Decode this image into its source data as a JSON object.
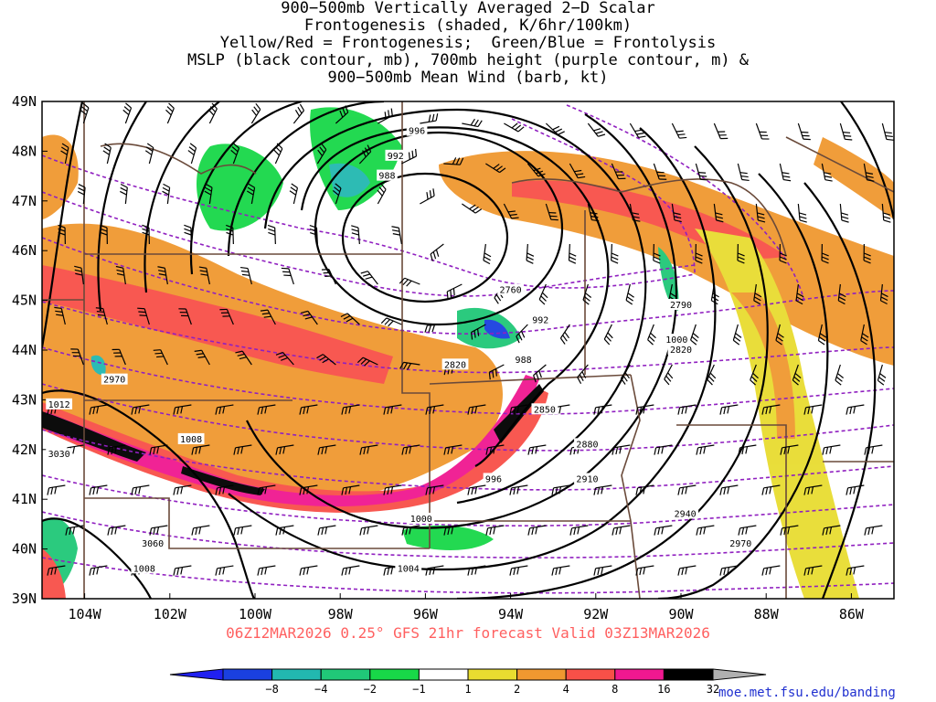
{
  "title_lines": [
    "900−500mb Vertically Averaged 2−D Scalar",
    "Frontogenesis (shaded, K/6hr/100km)",
    "Yellow/Red = Frontogenesis;  Green/Blue = Frontolysis",
    "MSLP (black contour, mb), 700mb height (purple contour, m) &",
    "900−500mb Mean Wind (barb, kt)"
  ],
  "valid_line": "06Z12MAR2026 0.25° GFS 21hr forecast Valid 03Z13MAR2026",
  "credit": "moe.met.fsu.edu/banding",
  "map": {
    "lat_labels": [
      "49N",
      "48N",
      "47N",
      "46N",
      "45N",
      "44N",
      "43N",
      "42N",
      "41N",
      "40N",
      "39N"
    ],
    "lon_labels": [
      "104W",
      "102W",
      "100W",
      "98W",
      "96W",
      "94W",
      "92W",
      "90W",
      "88W",
      "86W"
    ],
    "pressure_labels": [
      {
        "text": "996",
        "lon": -96.2,
        "lat": 48.4
      },
      {
        "text": "992",
        "lon": -96.7,
        "lat": 47.9
      },
      {
        "text": "988",
        "lon": -96.9,
        "lat": 47.5
      },
      {
        "text": "992",
        "lon": -93.3,
        "lat": 44.6
      },
      {
        "text": "988",
        "lon": -93.7,
        "lat": 43.8
      },
      {
        "text": "996",
        "lon": -94.4,
        "lat": 41.4
      },
      {
        "text": "1000",
        "lon": -96.1,
        "lat": 40.6
      },
      {
        "text": "1004",
        "lon": -96.4,
        "lat": 39.6
      },
      {
        "text": "1008",
        "lon": -101.5,
        "lat": 42.2
      },
      {
        "text": "1012",
        "lon": -104.6,
        "lat": 42.9
      },
      {
        "text": "1008",
        "lon": -102.6,
        "lat": 39.6
      },
      {
        "text": "1000",
        "lon": -90.1,
        "lat": 44.2
      }
    ],
    "height_labels": [
      {
        "text": "2760",
        "lon": -94.0,
        "lat": 45.2
      },
      {
        "text": "2790",
        "lon": -90.0,
        "lat": 44.9
      },
      {
        "text": "2820",
        "lon": -95.3,
        "lat": 43.7
      },
      {
        "text": "2820",
        "lon": -90.0,
        "lat": 44.0
      },
      {
        "text": "2850",
        "lon": -93.2,
        "lat": 42.8
      },
      {
        "text": "2880",
        "lon": -92.2,
        "lat": 42.1
      },
      {
        "text": "2910",
        "lon": -92.2,
        "lat": 41.4
      },
      {
        "text": "2940",
        "lon": -89.9,
        "lat": 40.7
      },
      {
        "text": "2970",
        "lon": -103.3,
        "lat": 43.4
      },
      {
        "text": "2970",
        "lon": -88.6,
        "lat": 40.1
      },
      {
        "text": "3030",
        "lon": -104.6,
        "lat": 41.9
      },
      {
        "text": "3060",
        "lon": -102.4,
        "lat": 40.1
      }
    ],
    "colorbar": {
      "labels": [
        "−8",
        "−4",
        "−2",
        "−1",
        "1",
        "2",
        "4",
        "8",
        "16",
        "32"
      ],
      "colors": [
        "#1a40e0",
        "#22b8b0",
        "#20c878",
        "#18d848",
        "#ffffff",
        "#e8dc30",
        "#f09830",
        "#f85048",
        "#f01890",
        "#000000"
      ]
    }
  }
}
